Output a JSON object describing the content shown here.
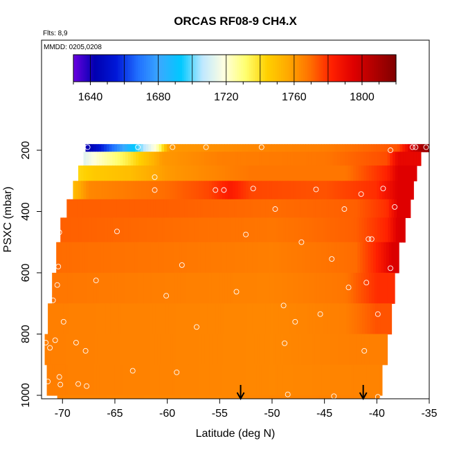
{
  "chart_data": {
    "type": "heatmap",
    "title": "ORCAS RF08-9 CH4.X",
    "flights_label": "Flts: 8,9",
    "dates_label": "MMDD: 0205,0208",
    "xlabel": "Latitude (deg N)",
    "ylabel": "PSXC (mbar)",
    "xlim": [
      -72,
      -35
    ],
    "ylim": [
      1010,
      90
    ],
    "x_ticks": [
      -70,
      -65,
      -60,
      -55,
      -50,
      -45,
      -40,
      -35
    ],
    "x_tick_labels": [
      "-70",
      "-65",
      "-60",
      "-55",
      "-50",
      "-45",
      "-40",
      "-35"
    ],
    "y_ticks": [
      200,
      400,
      600,
      800,
      1000
    ],
    "y_tick_labels": [
      "200",
      "400",
      "600",
      "800",
      "1000"
    ],
    "colorbar": {
      "range": [
        1630,
        1820
      ],
      "ticks": [
        1640,
        1680,
        1720,
        1760,
        1800
      ],
      "tick_labels": [
        "1640",
        "1680",
        "1720",
        "1760",
        "1800"
      ],
      "colors": [
        "#6a00e0",
        "#0000b0",
        "#0018d8",
        "#2070ff",
        "#3aa8ff",
        "#00c8ff",
        "#bfe8ff",
        "#ffffe0",
        "#ffff70",
        "#ffd000",
        "#ffa800",
        "#ff7000",
        "#ff2000",
        "#e00000",
        "#b00000",
        "#800000"
      ]
    },
    "layers": [
      {
        "p_top": 180,
        "p_bot": 205,
        "lat_start": -67.8,
        "lat_end": -34,
        "segments": [
          [
            -67.8,
            1640
          ],
          [
            -67.0,
            1648
          ],
          [
            -65.5,
            1665
          ],
          [
            -63.0,
            1695
          ],
          [
            -61.0,
            1722
          ],
          [
            -60.3,
            1745
          ],
          [
            -59.8,
            1760
          ],
          [
            -52,
            1764
          ],
          [
            -45,
            1766
          ],
          [
            -38,
            1774
          ],
          [
            -36.5,
            1800
          ],
          [
            -35.5,
            1812
          ]
        ]
      },
      {
        "p_top": 205,
        "p_bot": 250,
        "lat_start": -68.0,
        "lat_end": -35.8,
        "segments": [
          [
            -68.0,
            1712
          ],
          [
            -66.5,
            1722
          ],
          [
            -64.0,
            1735
          ],
          [
            -61.5,
            1752
          ],
          [
            -60.5,
            1760
          ],
          [
            -55,
            1766
          ],
          [
            -45,
            1768
          ],
          [
            -39,
            1775
          ],
          [
            -38,
            1792
          ]
        ]
      },
      {
        "p_top": 250,
        "p_bot": 300,
        "lat_start": -68.5,
        "lat_end": -36.2,
        "segments": [
          [
            -68.5,
            1742
          ],
          [
            -67.0,
            1746
          ],
          [
            -63.5,
            1750
          ],
          [
            -60.0,
            1760
          ],
          [
            -52,
            1768
          ],
          [
            -43,
            1768
          ],
          [
            -39,
            1782
          ],
          [
            -38,
            1795
          ]
        ]
      },
      {
        "p_top": 300,
        "p_bot": 360,
        "lat_start": -69.0,
        "lat_end": -36.5,
        "segments": [
          [
            -69.0,
            1750
          ],
          [
            -67.5,
            1764
          ],
          [
            -60,
            1770
          ],
          [
            -56,
            1776
          ],
          [
            -54,
            1784
          ],
          [
            -52,
            1776
          ],
          [
            -45,
            1774
          ],
          [
            -40,
            1780
          ],
          [
            -38,
            1795
          ]
        ]
      },
      {
        "p_top": 360,
        "p_bot": 420,
        "lat_start": -69.6,
        "lat_end": -36.8,
        "segments": [
          [
            -69.6,
            1772
          ],
          [
            -60,
            1772
          ],
          [
            -50,
            1770
          ],
          [
            -42,
            1772
          ],
          [
            -39,
            1780
          ],
          [
            -38,
            1795
          ]
        ]
      },
      {
        "p_top": 420,
        "p_bot": 500,
        "lat_start": -70.2,
        "lat_end": -37.3,
        "segments": [
          [
            -70.2,
            1772
          ],
          [
            -60,
            1770
          ],
          [
            -50,
            1768
          ],
          [
            -42,
            1772
          ],
          [
            -39,
            1782
          ],
          [
            -38,
            1796
          ]
        ]
      },
      {
        "p_top": 500,
        "p_bot": 600,
        "lat_start": -70.6,
        "lat_end": -37.9,
        "segments": [
          [
            -70.6,
            1770
          ],
          [
            -60,
            1768
          ],
          [
            -50,
            1766
          ],
          [
            -42,
            1770
          ],
          [
            -40,
            1782
          ],
          [
            -38.5,
            1796
          ]
        ]
      },
      {
        "p_top": 600,
        "p_bot": 700,
        "lat_start": -71.0,
        "lat_end": -38.3,
        "segments": [
          [
            -71.0,
            1768
          ],
          [
            -60,
            1766
          ],
          [
            -50,
            1765
          ],
          [
            -43,
            1768
          ],
          [
            -40,
            1780
          ]
        ]
      },
      {
        "p_top": 700,
        "p_bot": 800,
        "lat_start": -71.4,
        "lat_end": -38.6,
        "segments": [
          [
            -71.4,
            1766
          ],
          [
            -60,
            1765
          ],
          [
            -50,
            1764
          ],
          [
            -43,
            1766
          ],
          [
            -40,
            1774
          ]
        ]
      },
      {
        "p_top": 800,
        "p_bot": 900,
        "lat_start": -71.7,
        "lat_end": -39.0,
        "segments": [
          [
            -71.7,
            1766
          ],
          [
            -60,
            1765
          ],
          [
            -50,
            1764
          ],
          [
            -42,
            1766
          ]
        ]
      },
      {
        "p_top": 900,
        "p_bot": 1000,
        "lat_start": -71.5,
        "lat_end": -39.5,
        "segments": [
          [
            -71.5,
            1766
          ],
          [
            -60,
            1765
          ],
          [
            -50,
            1764
          ],
          [
            -42,
            1765
          ]
        ]
      },
      {
        "p_top": 1000,
        "p_bot": 1010,
        "lat_start": -70.5,
        "lat_end": -39.7,
        "segments": [
          [
            -70.5,
            1765
          ],
          [
            -55,
            1764
          ],
          [
            -45,
            1765
          ]
        ]
      }
    ],
    "markers": [
      [
        -67.6,
        190
      ],
      [
        -62.8,
        190
      ],
      [
        -59.5,
        190
      ],
      [
        -56.3,
        190
      ],
      [
        -51.0,
        190
      ],
      [
        -38.7,
        200
      ],
      [
        -36.6,
        190
      ],
      [
        -36.3,
        190
      ],
      [
        -35.3,
        190
      ],
      [
        -34.8,
        190
      ],
      [
        -61.2,
        288
      ],
      [
        -61.2,
        330
      ],
      [
        -55.4,
        330
      ],
      [
        -54.6,
        330
      ],
      [
        -51.8,
        325
      ],
      [
        -45.8,
        328
      ],
      [
        -41.5,
        343
      ],
      [
        -39.4,
        325
      ],
      [
        -70.0,
        378
      ],
      [
        -49.7,
        392
      ],
      [
        -43.1,
        392
      ],
      [
        -38.3,
        385
      ],
      [
        -70.3,
        468
      ],
      [
        -64.8,
        465
      ],
      [
        -52.5,
        475
      ],
      [
        -47.2,
        500
      ],
      [
        -40.8,
        490
      ],
      [
        -40.5,
        490
      ],
      [
        -70.4,
        580
      ],
      [
        -58.6,
        575
      ],
      [
        -44.3,
        555
      ],
      [
        -38.7,
        585
      ],
      [
        -66.8,
        625
      ],
      [
        -70.5,
        640
      ],
      [
        -53.4,
        662
      ],
      [
        -42.7,
        648
      ],
      [
        -41.0,
        632
      ],
      [
        -70.9,
        690
      ],
      [
        -60.1,
        675
      ],
      [
        -48.9,
        707
      ],
      [
        -45.4,
        735
      ],
      [
        -39.9,
        735
      ],
      [
        -69.9,
        760
      ],
      [
        -57.2,
        777
      ],
      [
        -47.8,
        760
      ],
      [
        -71.6,
        828
      ],
      [
        -70.7,
        820
      ],
      [
        -71.2,
        845
      ],
      [
        -68.7,
        828
      ],
      [
        -67.8,
        855
      ],
      [
        -48.8,
        830
      ],
      [
        -41.2,
        855
      ],
      [
        -63.3,
        920
      ],
      [
        -59.1,
        925
      ],
      [
        -70.3,
        940
      ],
      [
        -71.4,
        955
      ],
      [
        -70.2,
        965
      ],
      [
        -68.5,
        963
      ],
      [
        -67.7,
        970
      ],
      [
        -48.5,
        997
      ],
      [
        -44.1,
        1003
      ],
      [
        -39.9,
        1005
      ]
    ],
    "arrows": [
      -53.0,
      -41.3
    ]
  }
}
